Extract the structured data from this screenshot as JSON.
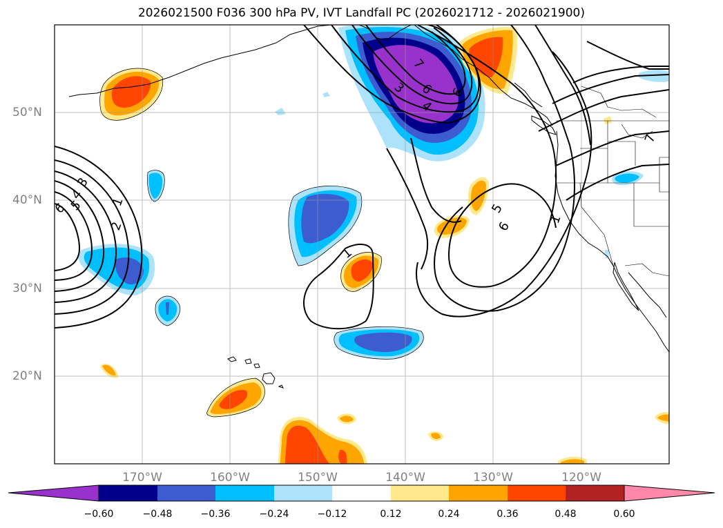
{
  "title": "2026021500 F036 300 hPa PV, IVT Landfall PC (2026021712 - 2026021900)",
  "map": {
    "projection": "plate-carree",
    "extent": {
      "lon_min": -180,
      "lon_max": -110,
      "lat_min": 10,
      "lat_max": 60
    },
    "gridlines": true,
    "lon_labels": [
      "170°W",
      "160°W",
      "150°W",
      "140°W",
      "130°W",
      "120°W"
    ],
    "lat_labels": [
      "50°N",
      "40°N",
      "30°N",
      "20°N"
    ]
  },
  "contour_labels": [
    "1",
    "2",
    "3",
    "4",
    "5",
    "6",
    "7",
    "3",
    "6",
    "4",
    "6",
    "7",
    "1",
    "5",
    "6",
    "1",
    "2"
  ],
  "colorbar": {
    "ticks": [
      "−0.60",
      "−0.48",
      "−0.36",
      "−0.24",
      "−0.12",
      "0.12",
      "0.24",
      "0.36",
      "0.48",
      "0.60"
    ],
    "colors": [
      "#9932cc",
      "#00008b",
      "#3c5ccf",
      "#00bfff",
      "#ade3fa",
      "#ffffff",
      "#ffe98c",
      "#ffa500",
      "#ff4500",
      "#b22222",
      "#ff88aa"
    ],
    "extend": "both"
  }
}
